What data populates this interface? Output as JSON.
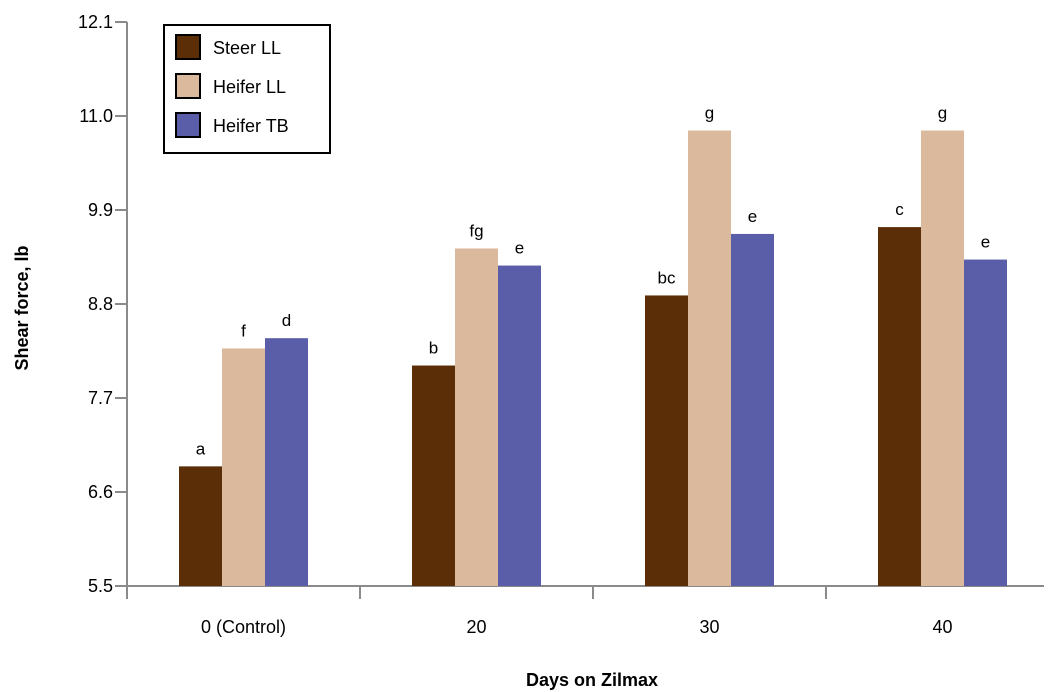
{
  "chart_data": {
    "type": "bar",
    "xlabel": "Days on Zilmax",
    "ylabel": "Shear force, lb",
    "ylim": [
      5.5,
      12.1
    ],
    "yticks": [
      "5.5",
      "6.6",
      "7.7",
      "8.8",
      "9.9",
      "11.0",
      "12.1"
    ],
    "categories": [
      "0 (Control)",
      "20",
      "30",
      "40"
    ],
    "series": [
      {
        "name": "Steer LL",
        "color": "#5c2e08",
        "values": [
          6.9,
          8.08,
          8.9,
          9.7
        ],
        "labels": [
          "a",
          "b",
          "bc",
          "c"
        ]
      },
      {
        "name": "Heifer LL",
        "color": "#dbb99c",
        "values": [
          8.28,
          9.45,
          10.83,
          10.83
        ],
        "labels": [
          "f",
          "fg",
          "g",
          "g"
        ]
      },
      {
        "name": "Heifer TB",
        "color": "#5a5ea9",
        "values": [
          8.4,
          9.25,
          9.62,
          9.32
        ],
        "labels": [
          "d",
          "e",
          "e",
          "e"
        ]
      }
    ],
    "grid": false,
    "legend": "top-left"
  }
}
